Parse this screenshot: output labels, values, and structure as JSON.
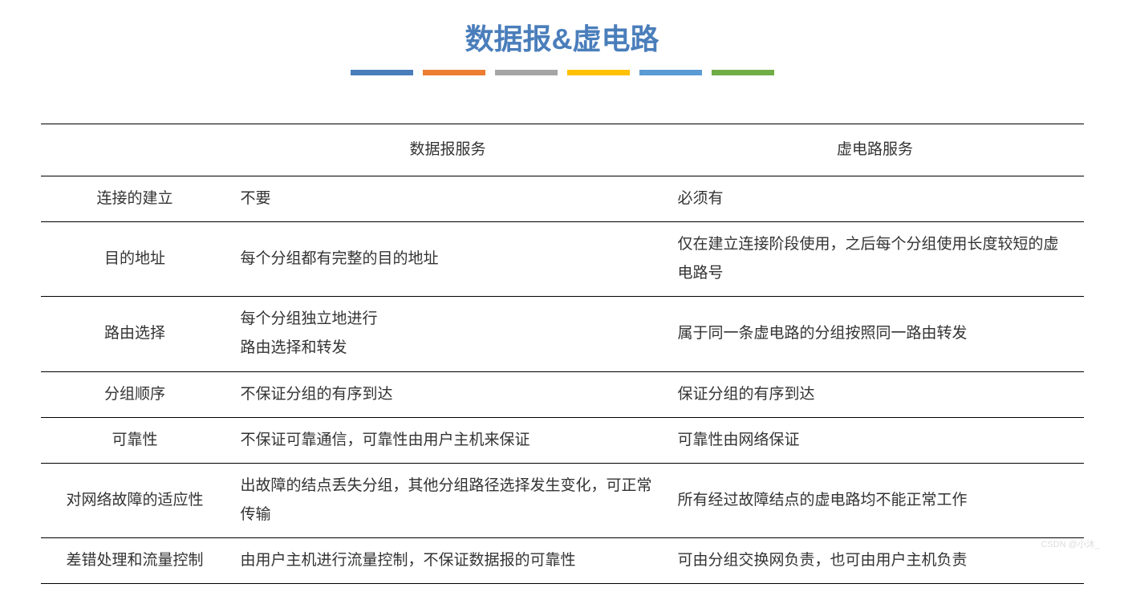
{
  "title": {
    "text": "数据报&虚电路",
    "color": "#4a7ebb",
    "fontsize": 36
  },
  "color_bars": [
    "#4a7ebb",
    "#ed7d31",
    "#a5a5a5",
    "#ffc000",
    "#5b9bd5",
    "#70ad47"
  ],
  "table": {
    "columns": [
      "",
      "数据报服务",
      "虚电路服务"
    ],
    "rows": [
      {
        "label": "连接的建立",
        "datagram": "不要",
        "virtual_circuit": "必须有"
      },
      {
        "label": "目的地址",
        "datagram": "每个分组都有完整的目的地址",
        "virtual_circuit": "仅在建立连接阶段使用，之后每个分组使用长度较短的虚电路号"
      },
      {
        "label": "路由选择",
        "datagram": "每个分组独立地进行\n路由选择和转发",
        "virtual_circuit": "属于同一条虚电路的分组按照同一路由转发"
      },
      {
        "label": "分组顺序",
        "datagram": "不保证分组的有序到达",
        "virtual_circuit": "保证分组的有序到达"
      },
      {
        "label": "可靠性",
        "datagram": "不保证可靠通信，可靠性由用户主机来保证",
        "virtual_circuit": "可靠性由网络保证"
      },
      {
        "label": "对网络故障的适应性",
        "datagram": "出故障的结点丢失分组，其他分组路径选择发生变化，可正常传输",
        "virtual_circuit": "所有经过故障结点的虚电路均不能正常工作"
      },
      {
        "label": "差错处理和流量控制",
        "datagram": "由用户主机进行流量控制，不保证数据报的可靠性",
        "virtual_circuit": "可由分组交换网负责，也可由用户主机负责"
      }
    ],
    "border_color": "#000000",
    "text_color": "#333333",
    "fontsize": 19
  },
  "watermark": "CSDN @小沐_"
}
